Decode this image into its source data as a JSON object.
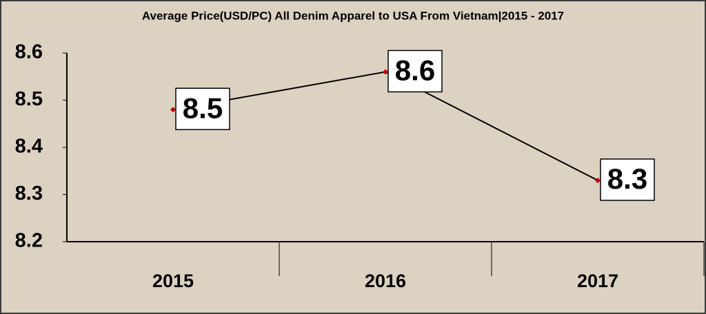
{
  "chart_data": {
    "type": "line",
    "title": "Average Price(USD/PC) All Denim Apparel to USA From Vietnam|2015 - 2017",
    "categories": [
      "2015",
      "2016",
      "2017"
    ],
    "values": [
      8.48,
      8.56,
      8.33
    ],
    "value_labels": [
      "8.5",
      "8.6",
      "8.3"
    ],
    "color": "#000000",
    "marker_color": "#c00000",
    "ylim": [
      8.2,
      8.6
    ],
    "yticks": [
      8.2,
      8.3,
      8.4,
      8.5,
      8.6
    ],
    "grid": false
  }
}
